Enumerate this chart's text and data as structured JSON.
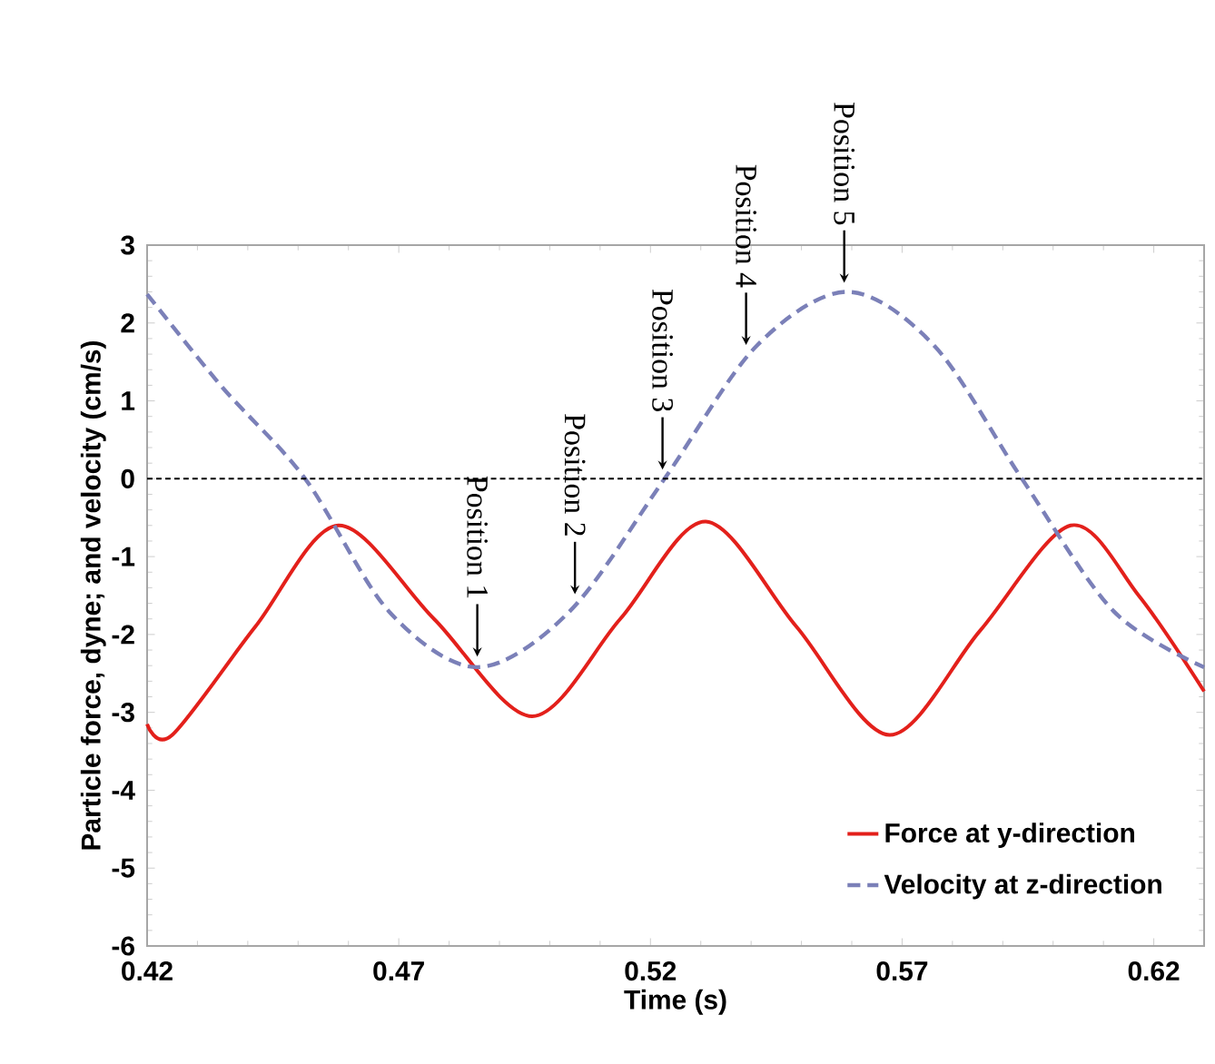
{
  "chart_data": {
    "type": "line",
    "xlabel": "Time (s)",
    "ylabel": "Particle force, dyne; and velocity (cm/s)",
    "xlim": [
      0.42,
      0.63
    ],
    "ylim": [
      -6,
      3
    ],
    "xticks": [
      0.42,
      0.47,
      0.52,
      0.57,
      0.62
    ],
    "yticks": [
      -6,
      -5,
      -4,
      -3,
      -2,
      -1,
      0,
      1,
      2,
      3
    ],
    "grid": false,
    "legend": "bottom right",
    "series": [
      {
        "name": "Force at y-direction",
        "color": "#e3201b",
        "line_style": "solid",
        "x": [
          0.42,
          0.425,
          0.4415,
          0.458,
          0.477,
          0.4965,
          0.514,
          0.531,
          0.549,
          0.5675,
          0.5855,
          0.6035,
          0.617,
          0.63
        ],
        "values": [
          -3.15,
          -3.29,
          -1.9,
          -0.6,
          -1.8,
          -3.05,
          -1.8,
          -0.55,
          -1.9,
          -3.29,
          -1.95,
          -0.6,
          -1.5,
          -2.73
        ]
      },
      {
        "name": "Velocity at z-direction",
        "color": "#7b80b8",
        "line_style": "dashed",
        "x": [
          0.42,
          0.435,
          0.4514,
          0.468,
          0.4856,
          0.504,
          0.5228,
          0.541,
          0.5591,
          0.5765,
          0.5938,
          0.612,
          0.63
        ],
        "values": [
          2.37,
          1.17,
          0,
          -1.7,
          -2.42,
          -1.7,
          0,
          1.7,
          2.4,
          1.7,
          0,
          -1.7,
          -2.42
        ]
      }
    ],
    "ref_lines": [
      {
        "axis": "y",
        "value": 0,
        "color": "#000000",
        "line_style": "dashed"
      }
    ],
    "annotations": [
      {
        "text": "Position 1",
        "x": 0.4856,
        "y": -2.4
      },
      {
        "text": "Position 2",
        "x": 0.505,
        "y": -1.6
      },
      {
        "text": "Position 3",
        "x": 0.5224,
        "y": 0
      },
      {
        "text": "Position 4",
        "x": 0.539,
        "y": 1.6
      },
      {
        "text": "Position 5",
        "x": 0.5585,
        "y": 2.4
      }
    ]
  }
}
